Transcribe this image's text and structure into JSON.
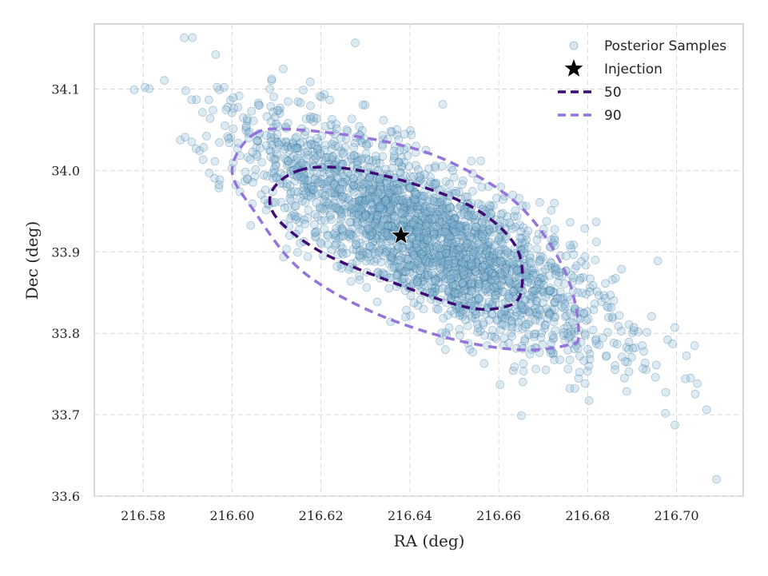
{
  "chart_data": {
    "type": "scatter",
    "xlabel": "RA (deg)",
    "ylabel": "Dec (deg)",
    "xlim": [
      216.569,
      216.715
    ],
    "ylim": [
      33.6,
      34.18
    ],
    "xticks": [
      216.58,
      216.6,
      216.62,
      216.64,
      216.66,
      216.68,
      216.7
    ],
    "xtick_labels": [
      "216.58",
      "216.60",
      "216.62",
      "216.64",
      "216.66",
      "216.68",
      "216.70"
    ],
    "yticks": [
      33.6,
      33.7,
      33.8,
      33.9,
      34.0,
      34.1
    ],
    "ytick_labels": [
      "33.6",
      "33.7",
      "33.8",
      "33.9",
      "34.0",
      "34.1"
    ],
    "grid": true,
    "legend_position": "top-right",
    "samples": {
      "name": "Posterior Samples",
      "count": 2600,
      "center": [
        216.644,
        33.918
      ],
      "colors": {
        "fill": "#8cb8d6",
        "edge": "#1f5f86"
      }
    },
    "injection": {
      "name": "Injection",
      "x": 216.638,
      "y": 33.92,
      "color": "#000000"
    },
    "contours": [
      {
        "name": "50",
        "color": "#3f0a74",
        "points": [
          [
            216.615,
            34.0
          ],
          [
            216.625,
            34.003
          ],
          [
            216.64,
            33.985
          ],
          [
            216.655,
            33.952
          ],
          [
            216.664,
            33.905
          ],
          [
            216.665,
            33.85
          ],
          [
            216.661,
            33.832
          ],
          [
            216.652,
            33.833
          ],
          [
            216.635,
            33.865
          ],
          [
            216.62,
            33.9
          ],
          [
            216.61,
            33.942
          ],
          [
            216.609,
            33.975
          ]
        ]
      },
      {
        "name": "90",
        "color": "#9474db",
        "points": [
          [
            216.605,
            34.045
          ],
          [
            216.615,
            34.05
          ],
          [
            216.635,
            34.035
          ],
          [
            216.65,
            34.008
          ],
          [
            216.665,
            33.955
          ],
          [
            216.675,
            33.875
          ],
          [
            216.678,
            33.8
          ],
          [
            216.675,
            33.785
          ],
          [
            216.664,
            33.78
          ],
          [
            216.648,
            33.795
          ],
          [
            216.63,
            33.83
          ],
          [
            216.615,
            33.88
          ],
          [
            216.605,
            33.95
          ],
          [
            216.6,
            34.0
          ]
        ]
      }
    ]
  }
}
